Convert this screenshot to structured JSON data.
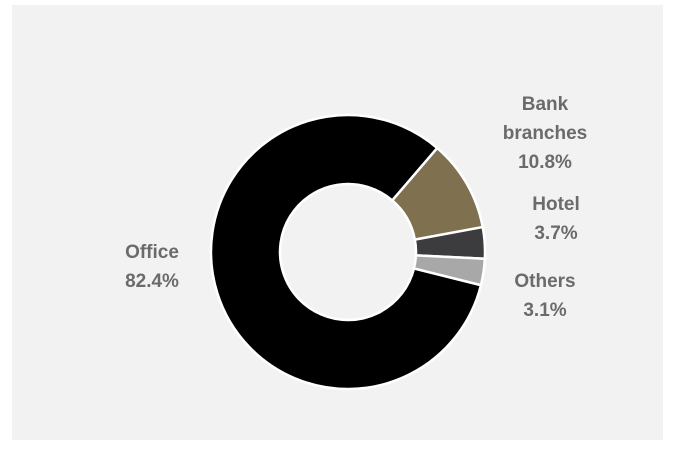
{
  "chart_data": {
    "type": "donut",
    "categories": [
      "Office",
      "Bank branches",
      "Hotel",
      "Others"
    ],
    "values": [
      82.4,
      10.8,
      3.7,
      3.1
    ],
    "value_labels": [
      "82.4%",
      "10.8%",
      "3.7%",
      "3.1%"
    ],
    "colors": [
      "#000000",
      "#7f704f",
      "#3c3c3e",
      "#a8a8a8"
    ]
  }
}
